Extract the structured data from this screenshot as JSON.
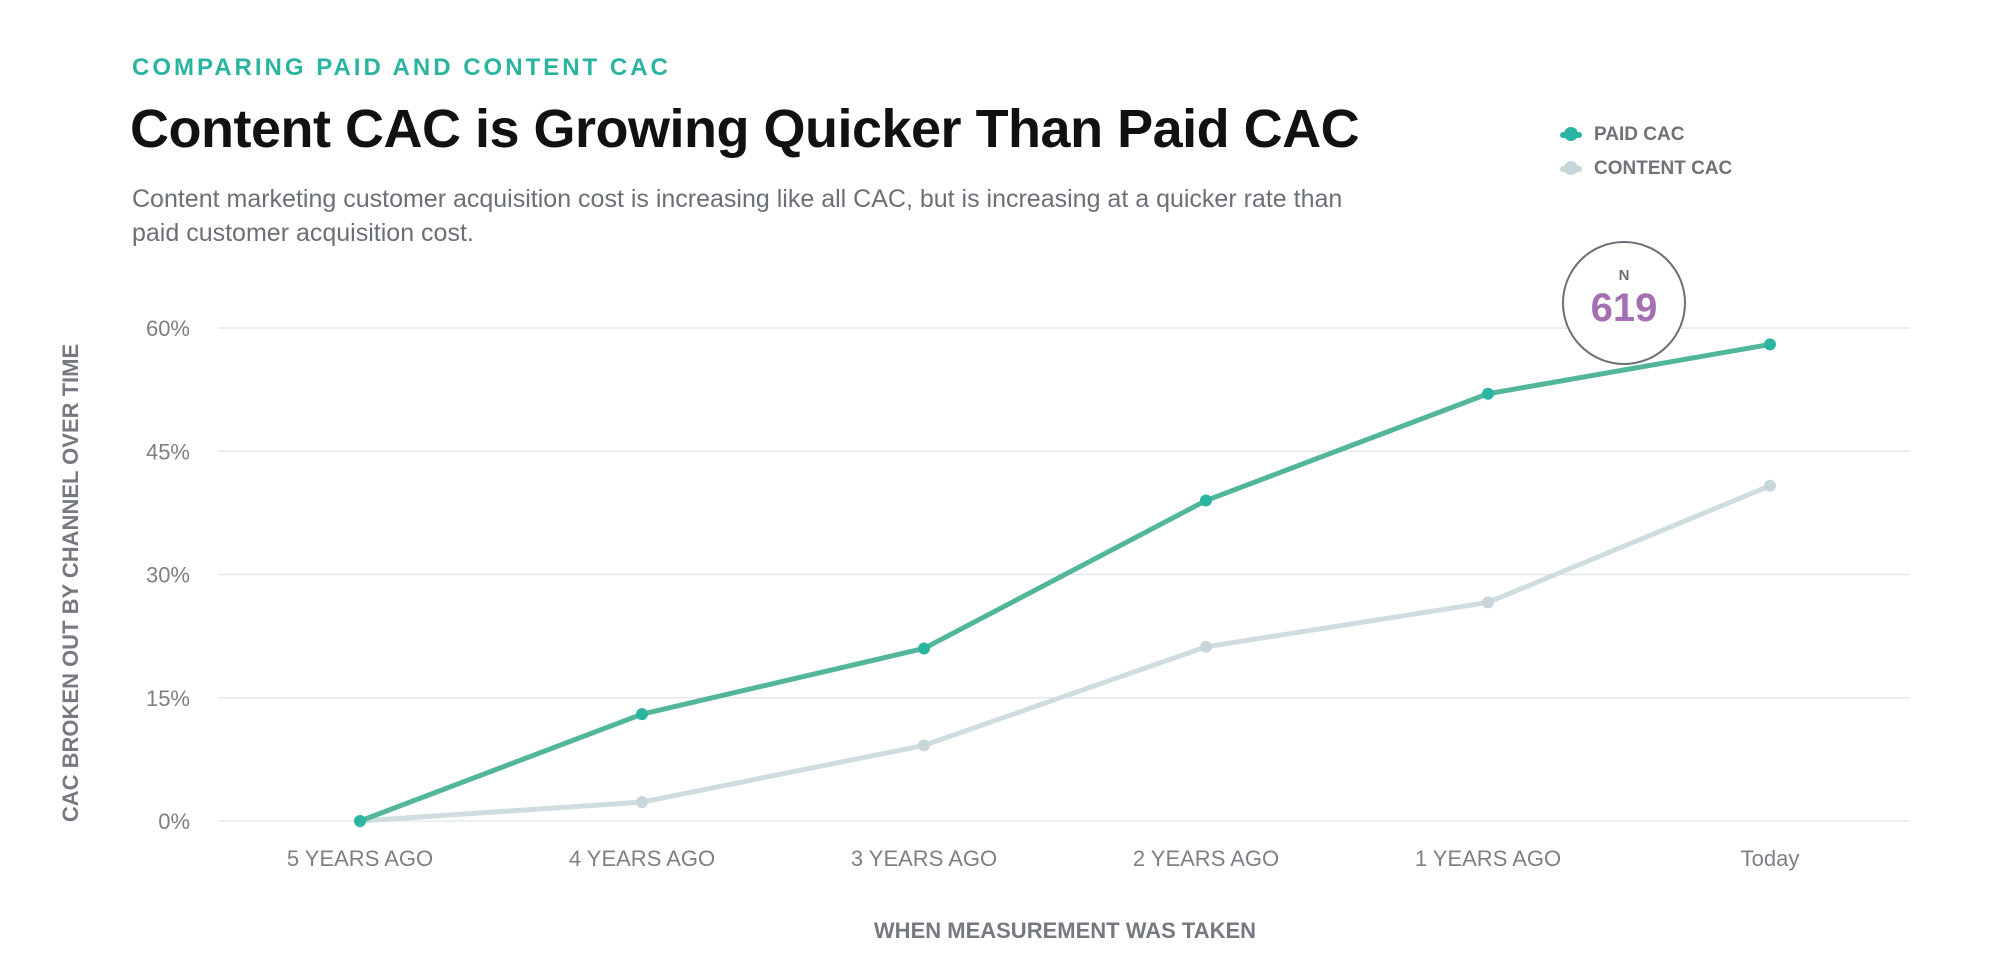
{
  "header": {
    "eyebrow": "COMPARING PAID AND CONTENT CAC",
    "title": "Content CAC is Growing Quicker Than Paid CAC",
    "subtitle": "Content marketing customer acquisition cost is increasing like all CAC, but is increasing at a quicker rate than paid customer acquisition cost."
  },
  "badge": {
    "label": "N",
    "value": "619"
  },
  "colors": {
    "paid": "#52b69a",
    "paid_marker": "#2bb5a0",
    "content": "#cfdde1",
    "content_marker": "#c6d6db",
    "grid": "#e6e8ea"
  },
  "chart_data": {
    "type": "line",
    "title": "Content CAC is Growing Quicker Than Paid CAC",
    "xlabel": "WHEN MEASUREMENT WAS TAKEN",
    "ylabel": "CAC BROKEN OUT BY CHANNEL OVER TIME",
    "categories": [
      "5 YEARS AGO",
      "4 YEARS AGO",
      "3 YEARS AGO",
      "2 YEARS AGO",
      "1 YEARS AGO",
      "Today"
    ],
    "ylim": [
      0,
      60
    ],
    "yticks": [
      0,
      15,
      30,
      45,
      60
    ],
    "ytick_labels": [
      "0%",
      "15%",
      "30%",
      "45%",
      "60%"
    ],
    "grid": true,
    "legend_position": "top-right",
    "series": [
      {
        "name": "PAID CAC",
        "values": [
          0,
          13,
          21,
          39,
          52,
          58
        ]
      },
      {
        "name": "CONTENT CAC",
        "values": [
          0,
          2.3,
          9.2,
          21.2,
          26.6,
          40.8
        ]
      }
    ]
  }
}
